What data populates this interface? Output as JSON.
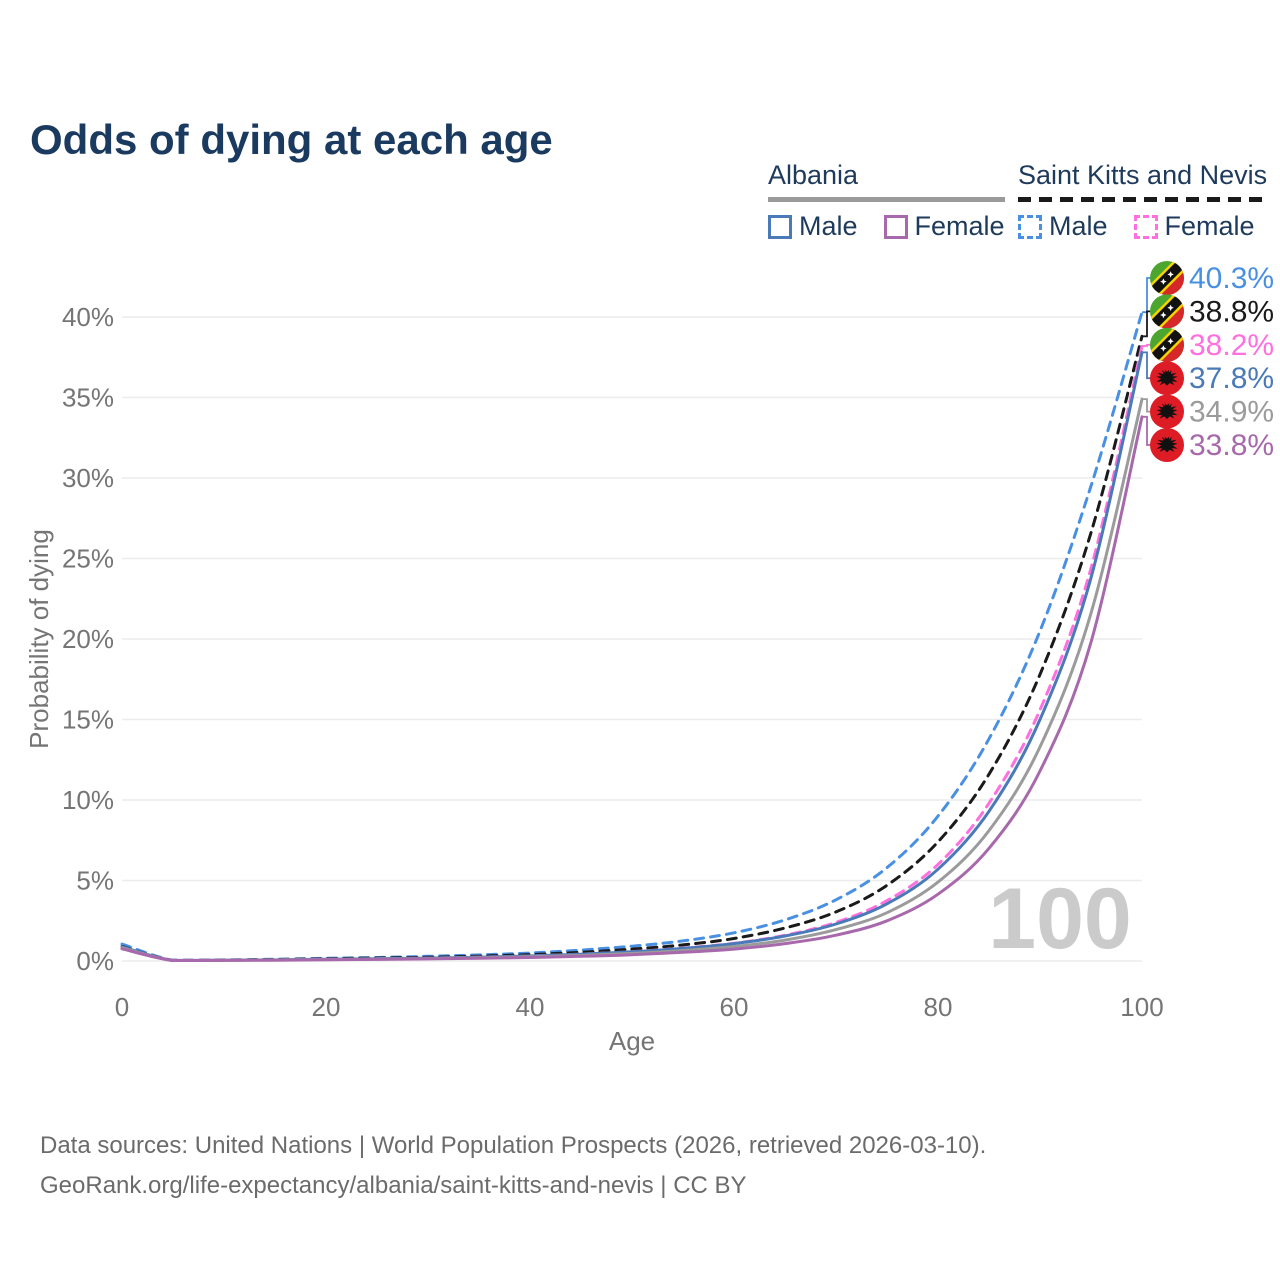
{
  "title": "Odds of dying at each age",
  "legend": {
    "albania": {
      "label": "Albania",
      "male": "Male",
      "female": "Female"
    },
    "saint_kitts": {
      "label": "Saint Kitts and Nevis",
      "male": "Male",
      "female": "Female"
    }
  },
  "watermark": "100",
  "footer": {
    "line1": "Data sources: United Nations | World Population Prospects (2026, retrieved 2026-03-10).",
    "line2": "GeoRank.org/life-expectancy/albania/saint-kitts-and-nevis | CC BY"
  },
  "chart_data": {
    "type": "line",
    "title": "Odds of dying at each age",
    "xlabel": "Age",
    "ylabel": "Probability of dying",
    "xlim": [
      0,
      100
    ],
    "ylim": [
      0,
      40
    ],
    "xticks": [
      0,
      20,
      40,
      60,
      80,
      100
    ],
    "yticks": [
      0,
      5,
      10,
      15,
      20,
      25,
      30,
      35,
      40
    ],
    "ytick_suffix": "%",
    "grid": "horizontal",
    "legend_position": "top-right",
    "hovered_age": "100",
    "x": [
      0,
      5,
      10,
      15,
      20,
      25,
      30,
      35,
      40,
      45,
      50,
      55,
      60,
      65,
      70,
      75,
      80,
      85,
      90,
      95,
      100
    ],
    "series": [
      {
        "id": "skn_male",
        "name": "Saint Kitts and Nevis Male",
        "color": "#4a90e2",
        "dash": true,
        "flag": "skn",
        "end_label": "40.3%",
        "values": [
          1.05,
          0.05,
          0.07,
          0.11,
          0.17,
          0.22,
          0.29,
          0.38,
          0.5,
          0.68,
          0.92,
          1.25,
          1.75,
          2.55,
          3.8,
          5.8,
          9.0,
          13.8,
          20.5,
          29.5,
          40.3
        ]
      },
      {
        "id": "skn_both",
        "name": "Saint Kitts and Nevis Both sexes",
        "color": "#1a1a1a",
        "dash": true,
        "flag": "skn",
        "end_label": "38.8%",
        "values": [
          0.9,
          0.04,
          0.06,
          0.09,
          0.14,
          0.18,
          0.23,
          0.3,
          0.4,
          0.54,
          0.74,
          1.0,
          1.4,
          2.05,
          3.05,
          4.7,
          7.4,
          11.6,
          17.8,
          26.6,
          38.8
        ]
      },
      {
        "id": "skn_female",
        "name": "Saint Kitts and Nevis Female",
        "color": "#ff6fe0",
        "dash": true,
        "flag": "skn",
        "end_label": "38.2%",
        "values": [
          0.8,
          0.04,
          0.05,
          0.07,
          0.11,
          0.14,
          0.18,
          0.24,
          0.32,
          0.43,
          0.58,
          0.8,
          1.1,
          1.6,
          2.4,
          3.75,
          6.0,
          9.8,
          15.6,
          24.4,
          38.2
        ]
      },
      {
        "id": "alb_male",
        "name": "Albania Male",
        "color": "#4a7ab8",
        "dash": false,
        "flag": "alb",
        "end_label": "37.8%",
        "values": [
          0.88,
          0.04,
          0.05,
          0.07,
          0.11,
          0.14,
          0.18,
          0.23,
          0.31,
          0.42,
          0.57,
          0.78,
          1.08,
          1.55,
          2.3,
          3.55,
          5.7,
          9.3,
          15.0,
          23.8,
          37.8
        ]
      },
      {
        "id": "alb_both",
        "name": "Albania Both sexes",
        "color": "#9b9b9b",
        "dash": false,
        "flag": "alb",
        "end_label": "34.9%",
        "values": [
          0.82,
          0.03,
          0.04,
          0.06,
          0.09,
          0.12,
          0.15,
          0.2,
          0.26,
          0.35,
          0.47,
          0.65,
          0.9,
          1.3,
          1.95,
          3.0,
          4.9,
          8.1,
          13.3,
          21.6,
          34.9
        ]
      },
      {
        "id": "alb_female",
        "name": "Albania Female",
        "color": "#a869ac",
        "dash": false,
        "flag": "alb",
        "end_label": "33.8%",
        "values": [
          0.76,
          0.03,
          0.04,
          0.05,
          0.08,
          0.1,
          0.13,
          0.17,
          0.22,
          0.29,
          0.39,
          0.54,
          0.74,
          1.08,
          1.6,
          2.5,
          4.15,
          7.0,
          11.8,
          19.8,
          33.8
        ]
      }
    ],
    "flag_colors": {
      "skn_green": "#4ca52e",
      "skn_red": "#d62828",
      "skn_black": "#111111",
      "skn_yellow": "#f5d400",
      "skn_star": "#ffffff",
      "alb_red": "#dd1c26",
      "alb_eagle": "#111111"
    },
    "text_colors": {
      "title": "#1b3a5f",
      "axis": "#757575",
      "watermark": "#cbcbcb",
      "grid": "#ececec"
    }
  }
}
